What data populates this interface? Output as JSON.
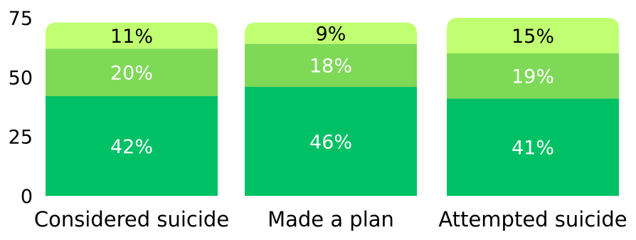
{
  "colors": {
    "series_1": "#00c065",
    "series_2": "#7ed957",
    "series_3": "#c1ff72",
    "label_light": "#ffffff",
    "label_dark": "#000000",
    "axis_text": "#000000"
  },
  "chart_data": {
    "type": "bar",
    "stacked": true,
    "title": "",
    "xlabel": "",
    "ylabel": "",
    "ylim": [
      0,
      75
    ],
    "yticks": [
      "0",
      "25",
      "50",
      "75"
    ],
    "grid": false,
    "legend": "none",
    "categories": [
      "Considered suicide",
      "Made a plan",
      "Attempted suicide"
    ],
    "series": [
      {
        "values": [
          42,
          46,
          41
        ],
        "labels": [
          "42%",
          "46%",
          "41%"
        ]
      },
      {
        "values": [
          20,
          18,
          19
        ],
        "labels": [
          "20%",
          "18%",
          "19%"
        ]
      },
      {
        "values": [
          11,
          9,
          15
        ],
        "labels": [
          "11%",
          "9%",
          "15%"
        ]
      }
    ]
  }
}
